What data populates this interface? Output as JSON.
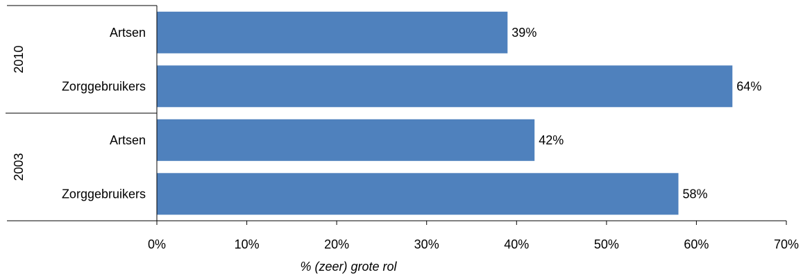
{
  "chart_data": {
    "type": "bar",
    "orientation": "horizontal",
    "xlabel": "% (zeer) grote rol",
    "xlim": [
      0,
      70
    ],
    "x_ticks": [
      "0%",
      "10%",
      "20%",
      "30%",
      "40%",
      "50%",
      "60%",
      "70%"
    ],
    "bar_color": "#4F81BD",
    "grid": false,
    "groups": [
      {
        "label": "2010",
        "bars": [
          {
            "category": "Artsen",
            "value": 39,
            "value_label": "39%"
          },
          {
            "category": "Zorggebruikers",
            "value": 64,
            "value_label": "64%"
          }
        ]
      },
      {
        "label": "2003",
        "bars": [
          {
            "category": "Artsen",
            "value": 42,
            "value_label": "42%"
          },
          {
            "category": "Zorggebruikers",
            "value": 58,
            "value_label": "58%"
          }
        ]
      }
    ]
  }
}
